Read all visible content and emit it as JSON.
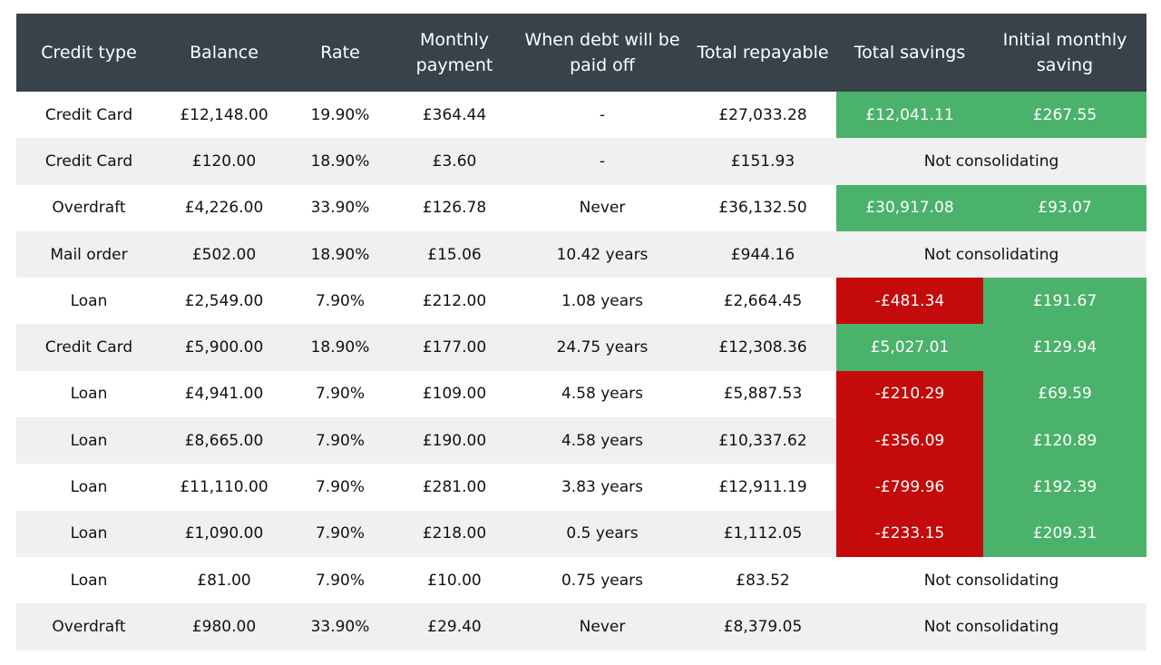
{
  "headers": [
    "Credit type",
    "Balance",
    "Rate",
    "Monthly payment",
    "When debt will be paid off",
    "Total repayable",
    "Total savings",
    "Initial monthly saving"
  ],
  "colors": {
    "header_bg": "#37424a",
    "positive": "#4bb26c",
    "negative": "#c40a0a",
    "stripe": "#f0f0f2"
  },
  "rows": [
    {
      "type": "Credit Card",
      "balance": "£12,148.00",
      "rate": "19.90%",
      "monthly": "£364.44",
      "paid_off": "-",
      "total": "£27,033.28",
      "savings": "£12,041.11",
      "savings_status": "pos",
      "initial": "£267.55",
      "initial_status": "pos"
    },
    {
      "type": "Credit Card",
      "balance": "£120.00",
      "rate": "18.90%",
      "monthly": "£3.60",
      "paid_off": "-",
      "total": "£151.93",
      "note": "Not consolidating"
    },
    {
      "type": "Overdraft",
      "balance": "£4,226.00",
      "rate": "33.90%",
      "monthly": "£126.78",
      "paid_off": "Never",
      "total": "£36,132.50",
      "savings": "£30,917.08",
      "savings_status": "pos",
      "initial": "£93.07",
      "initial_status": "pos"
    },
    {
      "type": "Mail order",
      "balance": "£502.00",
      "rate": "18.90%",
      "monthly": "£15.06",
      "paid_off": "10.42 years",
      "total": "£944.16",
      "note": "Not consolidating"
    },
    {
      "type": "Loan",
      "balance": "£2,549.00",
      "rate": "7.90%",
      "monthly": "£212.00",
      "paid_off": "1.08 years",
      "total": "£2,664.45",
      "savings": "-£481.34",
      "savings_status": "neg",
      "initial": "£191.67",
      "initial_status": "pos"
    },
    {
      "type": "Credit Card",
      "balance": "£5,900.00",
      "rate": "18.90%",
      "monthly": "£177.00",
      "paid_off": "24.75 years",
      "total": "£12,308.36",
      "savings": "£5,027.01",
      "savings_status": "pos",
      "initial": "£129.94",
      "initial_status": "pos"
    },
    {
      "type": "Loan",
      "balance": "£4,941.00",
      "rate": "7.90%",
      "monthly": "£109.00",
      "paid_off": "4.58 years",
      "total": "£5,887.53",
      "savings": "-£210.29",
      "savings_status": "neg",
      "initial": "£69.59",
      "initial_status": "pos"
    },
    {
      "type": "Loan",
      "balance": "£8,665.00",
      "rate": "7.90%",
      "monthly": "£190.00",
      "paid_off": "4.58 years",
      "total": "£10,337.62",
      "savings": "-£356.09",
      "savings_status": "neg",
      "initial": "£120.89",
      "initial_status": "pos"
    },
    {
      "type": "Loan",
      "balance": "£11,110.00",
      "rate": "7.90%",
      "monthly": "£281.00",
      "paid_off": "3.83 years",
      "total": "£12,911.19",
      "savings": "-£799.96",
      "savings_status": "neg",
      "initial": "£192.39",
      "initial_status": "pos"
    },
    {
      "type": "Loan",
      "balance": "£1,090.00",
      "rate": "7.90%",
      "monthly": "£218.00",
      "paid_off": "0.5 years",
      "total": "£1,112.05",
      "savings": "-£233.15",
      "savings_status": "neg",
      "initial": "£209.31",
      "initial_status": "pos"
    },
    {
      "type": "Loan",
      "balance": "£81.00",
      "rate": "7.90%",
      "monthly": "£10.00",
      "paid_off": "0.75 years",
      "total": "£83.52",
      "note": "Not consolidating"
    },
    {
      "type": "Overdraft",
      "balance": "£980.00",
      "rate": "33.90%",
      "monthly": "£29.40",
      "paid_off": "Never",
      "total": "£8,379.05",
      "note": "Not consolidating"
    }
  ]
}
